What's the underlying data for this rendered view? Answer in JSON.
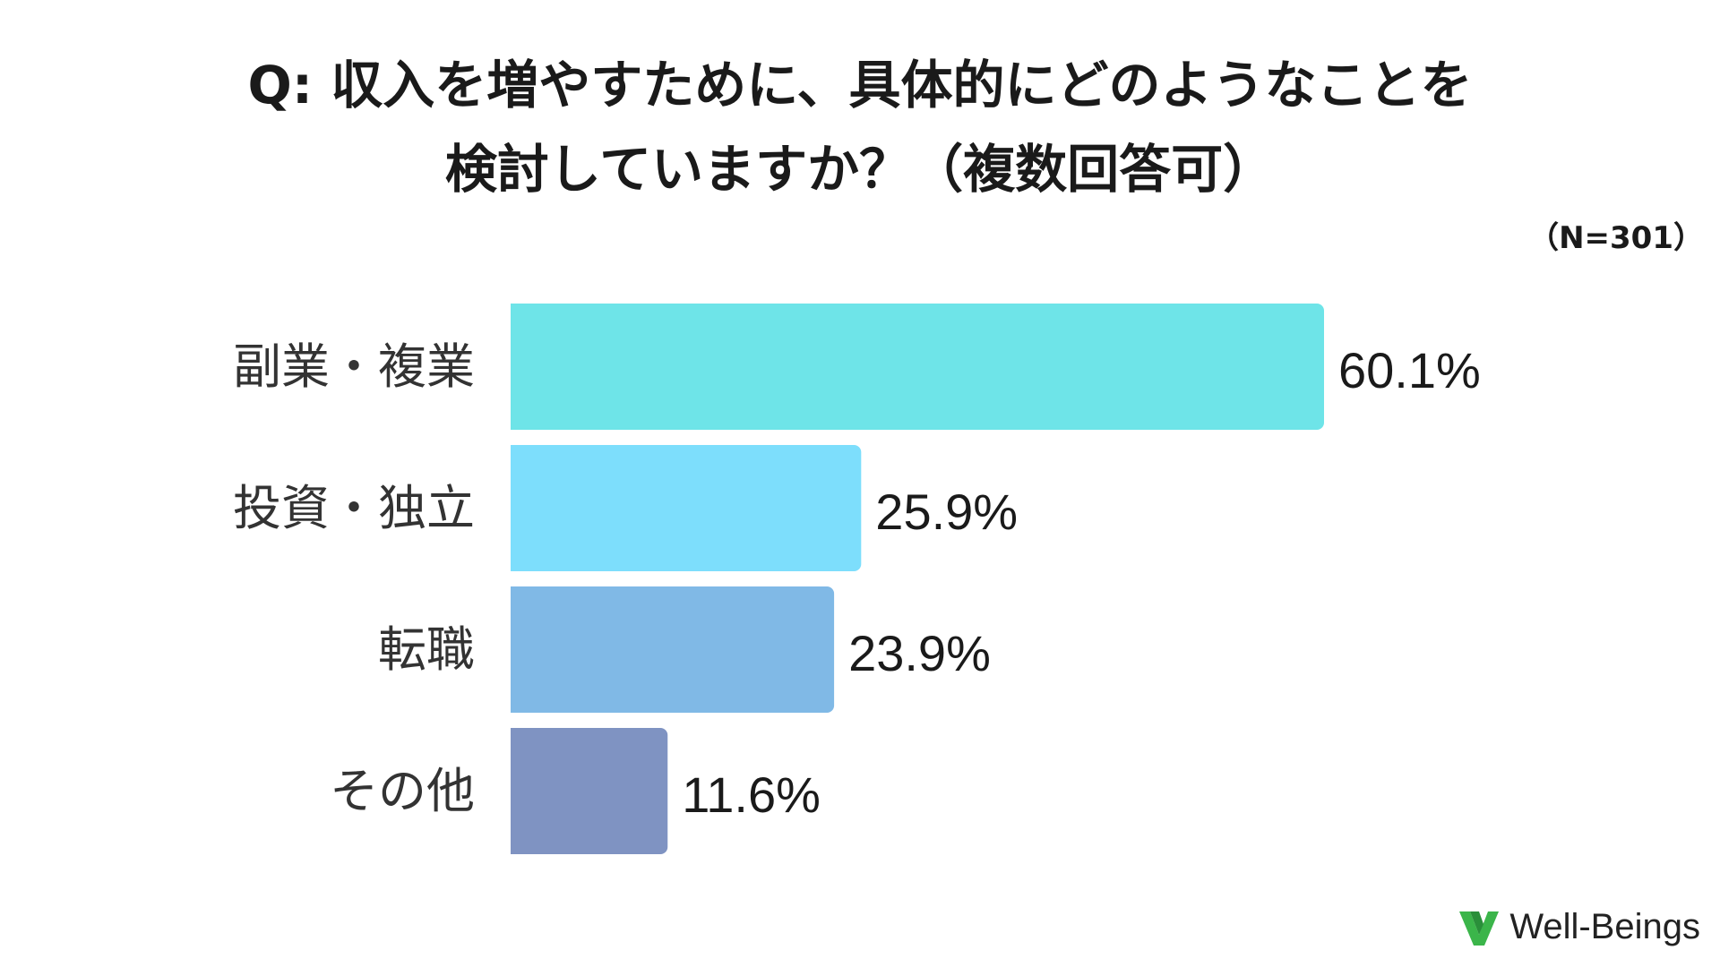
{
  "title": {
    "line1": "Q: 収入を増やすために、具体的にどのようなことを",
    "line2": "検討していますか？（複数回答可）"
  },
  "sample_size": "（N=301）",
  "brand": {
    "name": "Well-Beings",
    "logo_icon": "well-beings-logo-icon"
  },
  "colors": {
    "bars": [
      "#6ee4e8",
      "#7ddefc",
      "#80b9e6",
      "#7f93c2"
    ],
    "logo": "#3bb54a"
  },
  "chart_data": {
    "type": "bar",
    "orientation": "horizontal",
    "categories": [
      "副業・複業",
      "投資・独立",
      "転職",
      "その他"
    ],
    "values": [
      60.1,
      25.9,
      23.9,
      11.6
    ],
    "value_labels": [
      "60.1%",
      "25.9%",
      "23.9%",
      "11.6%"
    ],
    "unit": "%",
    "title": "Q: 収入を増やすために、具体的にどのようなことを検討していますか？（複数回答可）",
    "xlabel": "",
    "ylabel": "",
    "xlim": [
      0,
      100
    ],
    "grid": false,
    "legend": "none"
  }
}
